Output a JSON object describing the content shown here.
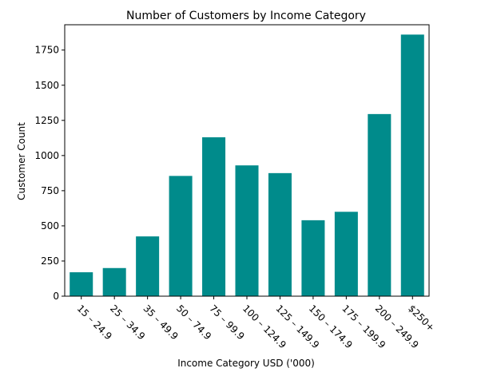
{
  "chart_data": {
    "type": "bar",
    "title": "Number of Customers by Income Category",
    "xlabel": "Income Category USD ('000)",
    "ylabel": "Customer Count",
    "categories": [
      "15 – 24.9",
      "25 – 34.9",
      "35 – 49.9",
      "50 – 74.9",
      "75 – 99.9",
      "100 – 124.9",
      "125 – 149.9",
      "150 – 174.9",
      "175 – 199.9",
      "200 – 249.9",
      "$250+"
    ],
    "values": [
      170,
      200,
      425,
      855,
      1130,
      930,
      875,
      540,
      600,
      1295,
      1860
    ],
    "ylim": [
      0,
      1930
    ],
    "yticks": [
      0,
      250,
      500,
      750,
      1000,
      1250,
      1500,
      1750
    ],
    "color": "#008b8b",
    "grid": false
  }
}
